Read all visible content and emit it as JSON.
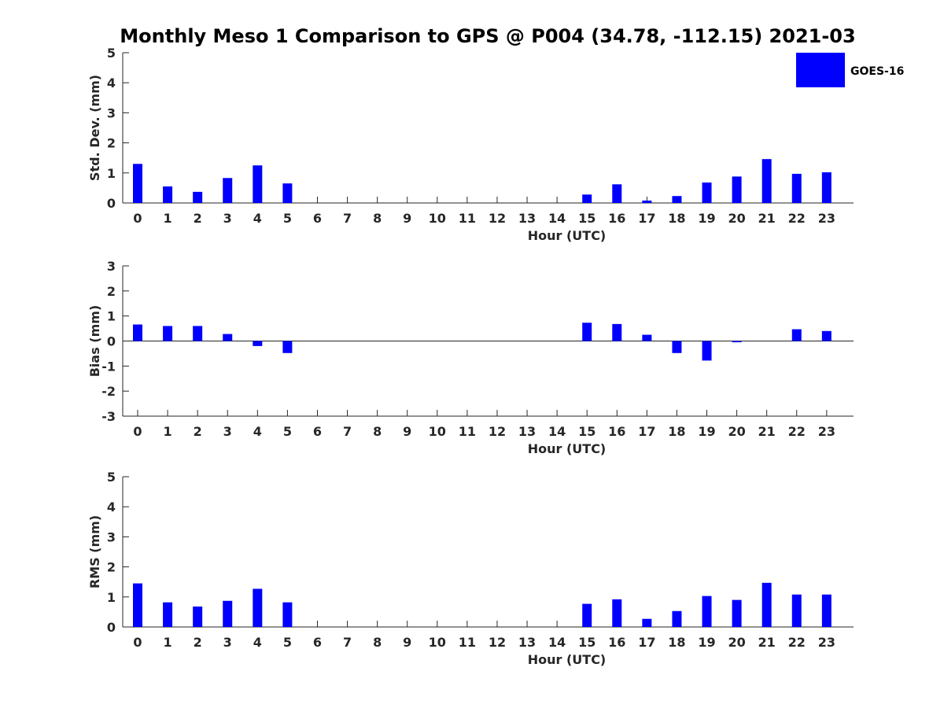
{
  "title": "Monthly Meso 1 Comparison to GPS @ P004 (34.78, -112.15) 2021-03",
  "legend": {
    "label": "GOES-16",
    "color": "#0000ff"
  },
  "chart_data": [
    {
      "type": "bar",
      "name": "std",
      "series_name": "GOES-16",
      "xlabel": "Hour (UTC)",
      "ylabel": "Std. Dev. (mm)",
      "ylim": [
        0,
        5
      ],
      "yticks": [
        "0",
        "1",
        "2",
        "3",
        "4",
        "5"
      ],
      "categories": [
        "0",
        "1",
        "2",
        "3",
        "4",
        "5",
        "6",
        "7",
        "8",
        "9",
        "10",
        "11",
        "12",
        "13",
        "14",
        "15",
        "16",
        "17",
        "18",
        "19",
        "20",
        "21",
        "22",
        "23"
      ],
      "values": [
        1.3,
        0.55,
        0.37,
        0.83,
        1.25,
        0.65,
        null,
        null,
        null,
        null,
        null,
        null,
        null,
        null,
        null,
        0.28,
        0.62,
        0.08,
        0.23,
        0.68,
        0.88,
        1.46,
        0.97,
        1.02
      ]
    },
    {
      "type": "bar",
      "name": "bias",
      "series_name": "GOES-16",
      "xlabel": "Hour (UTC)",
      "ylabel": "Bias (mm)",
      "ylim": [
        -3,
        3
      ],
      "yticks": [
        "-3",
        "-2",
        "-1",
        "0",
        "1",
        "2",
        "3"
      ],
      "categories": [
        "0",
        "1",
        "2",
        "3",
        "4",
        "5",
        "6",
        "7",
        "8",
        "9",
        "10",
        "11",
        "12",
        "13",
        "14",
        "15",
        "16",
        "17",
        "18",
        "19",
        "20",
        "21",
        "22",
        "23"
      ],
      "values": [
        0.66,
        0.6,
        0.6,
        0.28,
        -0.2,
        -0.48,
        null,
        null,
        null,
        null,
        null,
        null,
        null,
        null,
        null,
        0.73,
        0.68,
        0.25,
        -0.48,
        -0.78,
        -0.05,
        0.0,
        0.47,
        0.4
      ]
    },
    {
      "type": "bar",
      "name": "rms",
      "series_name": "GOES-16",
      "xlabel": "Hour (UTC)",
      "ylabel": "RMS (mm)",
      "ylim": [
        0,
        5
      ],
      "yticks": [
        "0",
        "1",
        "2",
        "3",
        "4",
        "5"
      ],
      "categories": [
        "0",
        "1",
        "2",
        "3",
        "4",
        "5",
        "6",
        "7",
        "8",
        "9",
        "10",
        "11",
        "12",
        "13",
        "14",
        "15",
        "16",
        "17",
        "18",
        "19",
        "20",
        "21",
        "22",
        "23"
      ],
      "values": [
        1.45,
        0.82,
        0.68,
        0.87,
        1.27,
        0.82,
        null,
        null,
        null,
        null,
        null,
        null,
        null,
        null,
        null,
        0.77,
        0.92,
        0.27,
        0.53,
        1.03,
        0.9,
        1.47,
        1.08,
        1.08
      ]
    }
  ]
}
